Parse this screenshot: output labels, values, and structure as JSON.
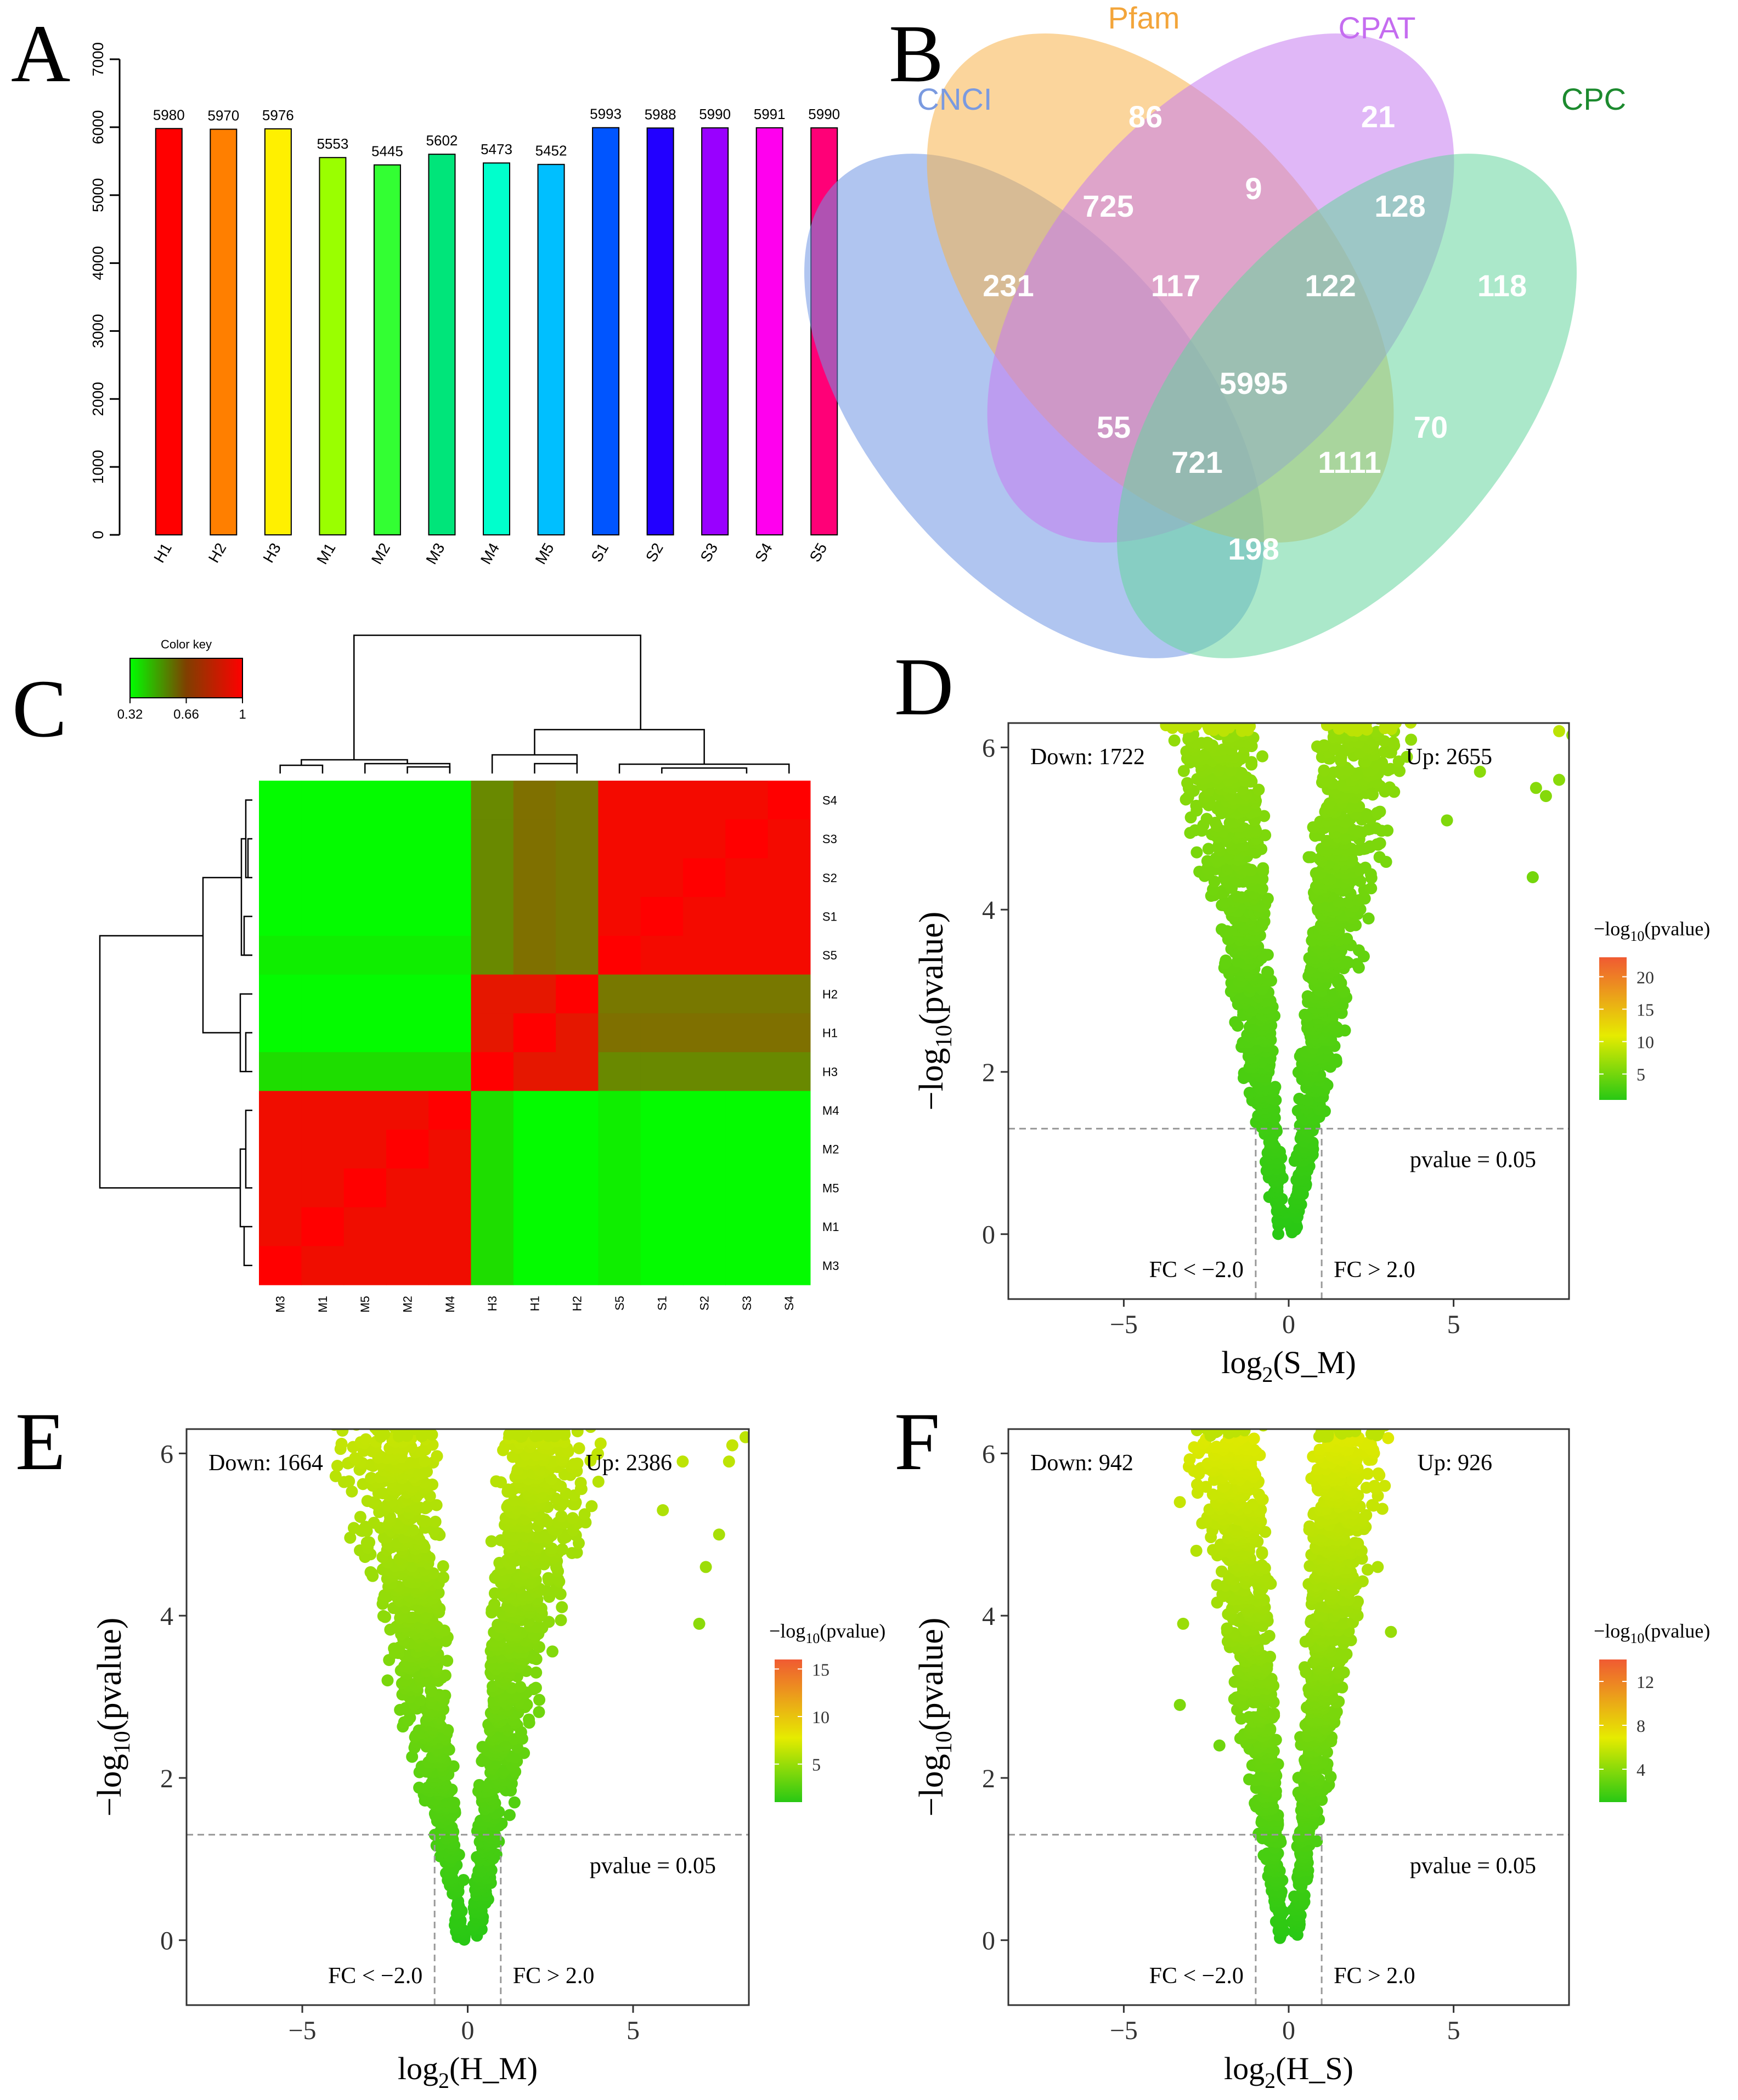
{
  "panel_letters": [
    "A",
    "B",
    "C",
    "D",
    "E",
    "F"
  ],
  "chart_data": [
    {
      "panel": "A",
      "type": "bar",
      "categories": [
        "H1",
        "H2",
        "H3",
        "M1",
        "M2",
        "M3",
        "M4",
        "M5",
        "S1",
        "S2",
        "S3",
        "S4",
        "S5"
      ],
      "values": [
        5980,
        5970,
        5976,
        5553,
        5445,
        5602,
        5473,
        5452,
        5993,
        5988,
        5990,
        5991,
        5990
      ],
      "data_labels": [
        "5980",
        "5970",
        "5976",
        "5553",
        "5445",
        "5602",
        "5473",
        "5452",
        "5993",
        "5988",
        "5990",
        "5991",
        "5990"
      ],
      "colors": [
        "#FF0000",
        "#FF7F00",
        "#FFF000",
        "#9AFF00",
        "#33FF33",
        "#00E57A",
        "#00FFCC",
        "#00BFFF",
        "#0055FF",
        "#2200FF",
        "#9900FF",
        "#FF00EE",
        "#FF0077"
      ],
      "ylim": [
        0,
        7000
      ],
      "yticks": [
        "0",
        "1000",
        "2000",
        "3000",
        "4000",
        "5000",
        "6000",
        "7000"
      ],
      "grid": false,
      "xlabel": "",
      "ylabel": ""
    },
    {
      "panel": "B",
      "type": "venn",
      "sets": [
        {
          "name": "CNCI",
          "color": "#6F95E3",
          "label_color": "#7A9AE0"
        },
        {
          "name": "Pfam",
          "color": "#F7B24A",
          "label_color": "#F3A53A"
        },
        {
          "name": "CPAT",
          "color": "#C77CF1",
          "label_color": "#C56CF0"
        },
        {
          "name": "CPC",
          "color": "#66D69E",
          "label_color": "#1C8A2E"
        }
      ],
      "regions": [
        {
          "sets": [
            "Pfam"
          ],
          "count": "86"
        },
        {
          "sets": [
            "CPAT"
          ],
          "count": "21"
        },
        {
          "sets": [
            "CNCI"
          ],
          "count": "231"
        },
        {
          "sets": [
            "CPC"
          ],
          "count": "118"
        },
        {
          "sets": [
            "CNCI",
            "Pfam"
          ],
          "count": "725"
        },
        {
          "sets": [
            "Pfam",
            "CPAT"
          ],
          "count": "9"
        },
        {
          "sets": [
            "CPAT",
            "CPC"
          ],
          "count": "128"
        },
        {
          "sets": [
            "CNCI",
            "Pfam",
            "CPAT"
          ],
          "count": "117"
        },
        {
          "sets": [
            "Pfam",
            "CPAT",
            "CPC"
          ],
          "count": "122"
        },
        {
          "sets": [
            "CNCI",
            "Pfam",
            "CPAT",
            "CPC"
          ],
          "count": "5995"
        },
        {
          "sets": [
            "CNCI",
            "CPAT"
          ],
          "count": "55"
        },
        {
          "sets": [
            "Pfam",
            "CPC"
          ],
          "count": "70"
        },
        {
          "sets": [
            "CNCI",
            "CPAT",
            "CPC"
          ],
          "count": "721"
        },
        {
          "sets": [
            "CNCI",
            "Pfam",
            "CPC"
          ],
          "count": "1111"
        },
        {
          "sets": [
            "CNCI",
            "CPC"
          ],
          "count": "198"
        }
      ]
    },
    {
      "panel": "C",
      "type": "heatmap",
      "color_key": {
        "title": "Color key",
        "ticks": [
          "0.32",
          "0.66",
          "1"
        ],
        "min": 0.32,
        "max": 1,
        "colors": [
          "#00FF00",
          "#7F3F00",
          "#FF0000"
        ]
      },
      "row_labels": [
        "S4",
        "S3",
        "S2",
        "S1",
        "S5",
        "H2",
        "H1",
        "H3",
        "M4",
        "M2",
        "M5",
        "M1",
        "M3"
      ],
      "col_labels": [
        "M3",
        "M1",
        "M5",
        "M2",
        "M4",
        "H3",
        "H1",
        "H2",
        "S5",
        "S1",
        "S2",
        "S3",
        "S4"
      ]
    },
    {
      "panel": "D",
      "type": "scatter",
      "subtype": "volcano",
      "xlabel_main": "log",
      "xlabel_sub": "2",
      "xlabel_rest": "(S_M)",
      "ylabel_main": "−log",
      "ylabel_sub": "10",
      "ylabel_rest": "(pvalue)",
      "xticks": [
        "−5",
        "0",
        "5"
      ],
      "yticks": [
        "0",
        "2",
        "4",
        "6"
      ],
      "xlim": [
        -8.5,
        8.5
      ],
      "ylim": [
        -0.8,
        6.3
      ],
      "down_label": "Down: 1722",
      "up_label": "Up: 2655",
      "pvalue_label": "pvalue = 0.05",
      "fc_down_label": "FC < −2.0",
      "fc_up_label": "FC > 2.0",
      "threshold_y": 1.3,
      "fc_lines": [
        -1,
        1
      ],
      "legend_title_main": "−log",
      "legend_title_sub": "10",
      "legend_title_rest": "(pvalue)",
      "legend_ticks": [
        "5",
        "10",
        "15",
        "20"
      ],
      "legend_range": [
        1,
        23
      ],
      "spread": 1.0,
      "seed": 11,
      "outliers": [
        [
          7.5,
          5.5
        ],
        [
          7.8,
          5.4
        ],
        [
          8.2,
          5.6
        ],
        [
          7.4,
          4.4
        ],
        [
          8.6,
          6.15
        ],
        [
          8.2,
          6.2
        ],
        [
          5.8,
          5.7
        ],
        [
          4.8,
          5.1
        ]
      ]
    },
    {
      "panel": "E",
      "type": "scatter",
      "subtype": "volcano",
      "xlabel_main": "log",
      "xlabel_sub": "2",
      "xlabel_rest": "(H_M)",
      "ylabel_main": "−log",
      "ylabel_sub": "10",
      "ylabel_rest": "(pvalue)",
      "xticks": [
        "−5",
        "0",
        "5"
      ],
      "yticks": [
        "0",
        "2",
        "4",
        "6"
      ],
      "xlim": [
        -8.5,
        8.5
      ],
      "ylim": [
        -0.8,
        6.3
      ],
      "down_label": "Down: 1664",
      "up_label": "Up: 2386",
      "pvalue_label": "pvalue = 0.05",
      "fc_down_label": "FC < −2.0",
      "fc_up_label": "FC > 2.0",
      "threshold_y": 1.3,
      "fc_lines": [
        -1,
        1
      ],
      "legend_title_main": "−log",
      "legend_title_sub": "10",
      "legend_title_rest": "(pvalue)",
      "legend_ticks": [
        "5",
        "10",
        "15"
      ],
      "legend_range": [
        1,
        16
      ],
      "spread": 1.15,
      "seed": 23,
      "outliers": [
        [
          7.0,
          3.9
        ],
        [
          7.2,
          4.6
        ],
        [
          7.6,
          5.0
        ],
        [
          8.0,
          6.1
        ],
        [
          8.4,
          6.2
        ],
        [
          7.9,
          5.9
        ],
        [
          5.9,
          5.3
        ],
        [
          6.5,
          5.9
        ]
      ]
    },
    {
      "panel": "F",
      "type": "scatter",
      "subtype": "volcano",
      "xlabel_main": "log",
      "xlabel_sub": "2",
      "xlabel_rest": "(H_S)",
      "ylabel_main": "−log",
      "ylabel_sub": "10",
      "ylabel_rest": "(pvalue)",
      "xticks": [
        "−5",
        "0",
        "5"
      ],
      "yticks": [
        "0",
        "2",
        "4",
        "6"
      ],
      "xlim": [
        -8.5,
        8.5
      ],
      "ylim": [
        -0.8,
        6.3
      ],
      "down_label": "Down: 942",
      "up_label": "Up: 926",
      "pvalue_label": "pvalue = 0.05",
      "fc_down_label": "FC < −2.0",
      "fc_up_label": "FC > 2.0",
      "threshold_y": 1.3,
      "fc_lines": [
        -1,
        1
      ],
      "legend_title_main": "−log",
      "legend_title_sub": "10",
      "legend_title_rest": "(pvalue)",
      "legend_ticks": [
        "4",
        "8",
        "12"
      ],
      "legend_range": [
        1,
        14
      ],
      "spread": 0.85,
      "seed": 37,
      "outliers": [
        [
          -3.3,
          5.4
        ],
        [
          -3.2,
          3.9
        ],
        [
          -3.3,
          2.9
        ],
        [
          -2.8,
          4.8
        ],
        [
          2.7,
          4.6
        ],
        [
          3.1,
          3.8
        ],
        [
          2.6,
          5.6
        ],
        [
          -2.1,
          2.4
        ]
      ]
    }
  ]
}
